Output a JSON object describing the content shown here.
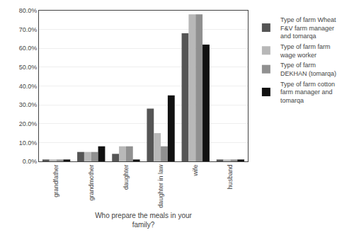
{
  "chart_data": {
    "type": "bar",
    "categories": [
      "grandfather",
      "grandmother",
      "daughter",
      "daughter in law",
      "wife",
      "husband"
    ],
    "series": [
      {
        "name": "Type of farm Wheat\nF&V farm manager\nand tomarqa",
        "color": "#555555",
        "values": [
          0.01,
          0.05,
          0.04,
          0.28,
          0.68,
          0.01
        ]
      },
      {
        "name": "Type of farm farm\nwage worker",
        "color": "#b8b8b8",
        "values": [
          0.01,
          0.05,
          0.08,
          0.15,
          0.78,
          0.01
        ]
      },
      {
        "name": "Type of farm\nDEKHAN (tomarqa)",
        "color": "#909090",
        "values": [
          0.01,
          0.05,
          0.08,
          0.08,
          0.78,
          0.01
        ]
      },
      {
        "name": "Type of farm cotton\nfarm manager and\ntomarqa",
        "color": "#111111",
        "values": [
          0.01,
          0.08,
          0.01,
          0.35,
          0.62,
          0.01
        ]
      }
    ],
    "x_label": "Who prepare the meals in your\nfamily?",
    "ylim": [
      0.0,
      0.8
    ],
    "yticks": [
      {
        "value": 0.0,
        "label": "0.0%"
      },
      {
        "value": 0.1,
        "label": "10.0%"
      },
      {
        "value": 0.2,
        "label": "20.0%"
      },
      {
        "value": 0.3,
        "label": "30.0%"
      },
      {
        "value": 0.4,
        "label": "40.0%"
      },
      {
        "value": 0.5,
        "label": "50.0%"
      },
      {
        "value": 0.6,
        "label": "60.0%"
      },
      {
        "value": 0.7,
        "label": "70.0%"
      },
      {
        "value": 0.8,
        "label": "80.0%"
      }
    ],
    "grid": true,
    "legend": "right"
  }
}
